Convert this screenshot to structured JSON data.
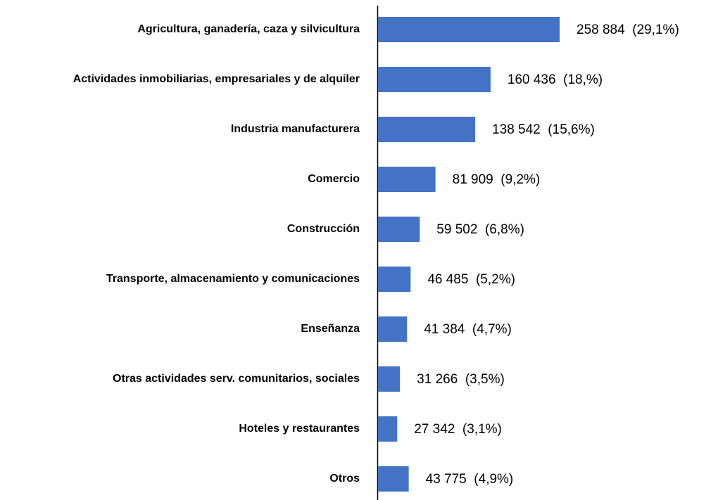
{
  "chart_data": {
    "type": "bar",
    "orientation": "horizontal",
    "color": "#4472c4",
    "categories": [
      "Agricultura, ganadería, caza y silvicultura",
      "Actividades inmobiliarias, empresariales y de alquiler",
      "Industria manufacturera",
      "Comercio",
      "Construcción",
      "Transporte, almacenamiento y comunicaciones",
      "Enseñanza",
      "Otras actividades serv. comunitarios, sociales",
      "Hoteles y restaurantes",
      "Otros"
    ],
    "values": [
      258884,
      160436,
      138542,
      81909,
      59502,
      46485,
      41384,
      31266,
      27342,
      43775
    ],
    "value_labels": [
      "258 884  (29,1%)",
      "160 436  (18,%)",
      "138 542  (15,6%)",
      "81 909  (9,2%)",
      "59 502  (6,8%)",
      "46 485  (5,2%)",
      "41 384  (4,7%)",
      "31 266  (3,5%)",
      "27 342  (3,1%)",
      "43 775  (4,9%)"
    ]
  }
}
